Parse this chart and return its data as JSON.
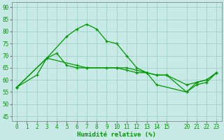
{
  "background_color": "#c8eae6",
  "grid_color": "#a8d4d0",
  "line_color": "#009900",
  "ylim": [
    43,
    92
  ],
  "ytick_vals": [
    45,
    50,
    55,
    60,
    65,
    70,
    75,
    80,
    85,
    90
  ],
  "xlabel": "Humidité relative (%)",
  "series": [
    {
      "x": [
        0,
        2,
        3,
        5,
        6,
        7,
        8,
        9,
        10,
        11,
        12,
        13,
        14,
        20,
        21,
        22,
        23
      ],
      "y": [
        57,
        62,
        69,
        78,
        81,
        83,
        81,
        76,
        75,
        70,
        65,
        63,
        58,
        55,
        59,
        60,
        63
      ]
    },
    {
      "x": [
        0,
        3,
        4,
        5,
        6,
        7,
        9,
        10,
        11,
        12,
        13,
        14,
        15,
        20,
        21,
        22,
        23
      ],
      "y": [
        57,
        69,
        71,
        66,
        65,
        65,
        65,
        65,
        65,
        64,
        63,
        62,
        62,
        58,
        59,
        60,
        63
      ]
    },
    {
      "x": [
        0,
        3,
        6,
        7,
        10,
        11,
        12,
        13,
        14,
        15,
        20,
        21,
        22,
        23
      ],
      "y": [
        57,
        69,
        66,
        65,
        65,
        64,
        63,
        63,
        62,
        62,
        55,
        58,
        59,
        63
      ]
    }
  ],
  "xtick_hours": [
    0,
    1,
    2,
    3,
    4,
    5,
    6,
    7,
    8,
    9,
    10,
    11,
    12,
    13,
    14,
    15,
    20,
    21,
    22,
    23
  ],
  "xtick_labels": [
    "0",
    "1",
    "2",
    "3",
    "4",
    "5",
    "6",
    "7",
    "8",
    "9",
    "10",
    "11",
    "12",
    "13",
    "14",
    "15",
    "20",
    "21",
    "22",
    "23"
  ],
  "xlim_mapped": [
    -0.5,
    20.5
  ]
}
